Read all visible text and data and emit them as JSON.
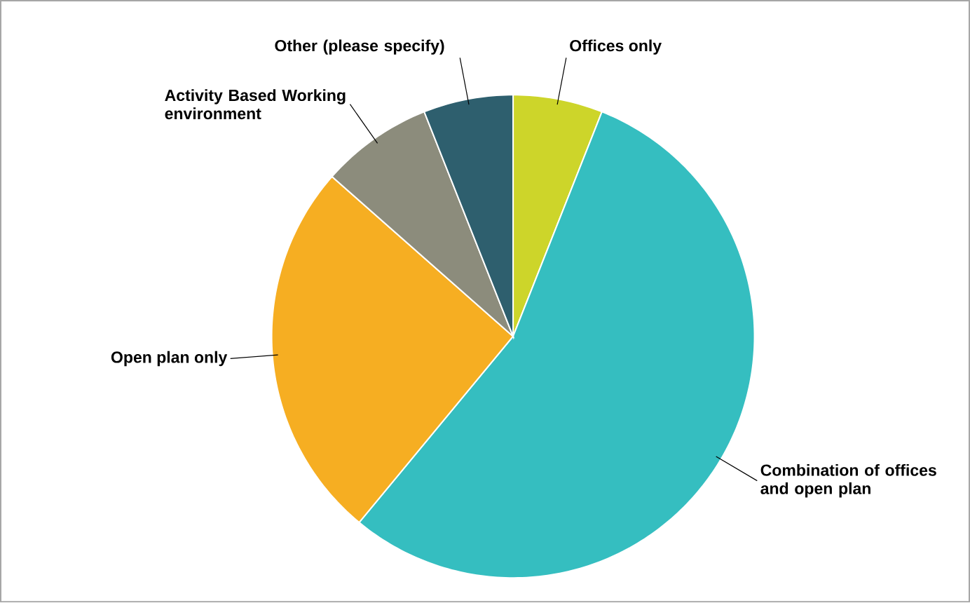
{
  "chart_data": {
    "type": "pie",
    "categories": [
      "Offices only",
      "Combination of offices and open plan",
      "Open plan only",
      "Activity Based Working environment",
      "Other (please specify)"
    ],
    "values": [
      6,
      55,
      25.5,
      7.5,
      6
    ],
    "colors": [
      "#cdd52a",
      "#35bec0",
      "#f6ae22",
      "#8c8c7c",
      "#2e5f6e"
    ]
  }
}
